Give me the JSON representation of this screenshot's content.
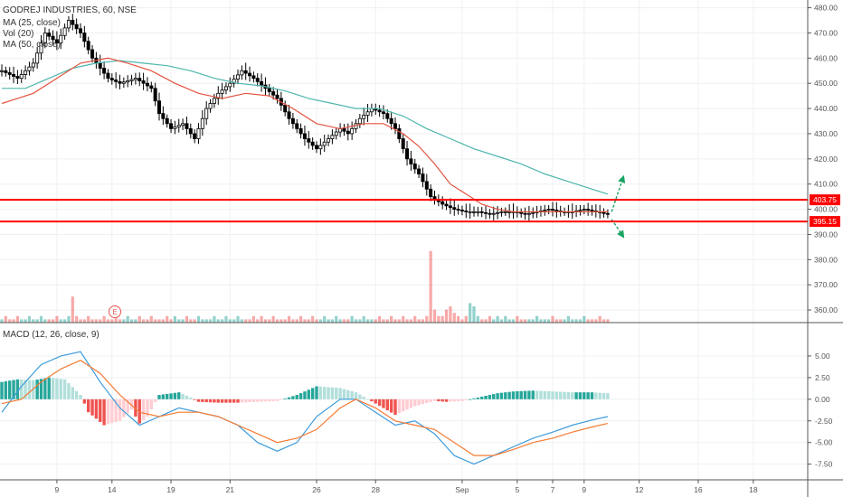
{
  "legend": {
    "title": "GODREJ INDUSTRIES, 60, NSE",
    "ma25": "MA (25, close)",
    "vol": "Vol (20)",
    "ma50": "MA (50, close)",
    "macd": "MACD (12, 26, close, 9)"
  },
  "earnings_marker": "E",
  "colors": {
    "up": "#26a69a",
    "down": "#ef5350",
    "ma25": "#e35340",
    "ma50": "#4db6ac",
    "level": "#ff0000",
    "macd_line": "#3d9bdc",
    "signal_line": "#f57b33",
    "arrow": "#19a463"
  },
  "chart_data": [
    {
      "type": "candlestick",
      "title": "GODREJ INDUSTRIES, 60, NSE",
      "x_ticks": [
        "9",
        "14",
        "19",
        "21",
        "26",
        "28",
        "Sep",
        "5",
        "7",
        "9",
        "12",
        "16",
        "18"
      ],
      "y_ticks": [
        "480.00",
        "470.00",
        "460.00",
        "450.00",
        "440.00",
        "430.00",
        "420.00",
        "410.00",
        "400.00",
        "390.00",
        "380.00",
        "370.00",
        "360.00"
      ],
      "ylim": [
        355,
        482
      ],
      "levels": [
        {
          "label": "403.75",
          "value": 403.75
        },
        {
          "label": "395.15",
          "value": 395.15
        }
      ],
      "close_path": [
        [
          0,
          455
        ],
        [
          4,
          452
        ],
        [
          8,
          458
        ],
        [
          11,
          470
        ],
        [
          14,
          466
        ],
        [
          17,
          475
        ],
        [
          20,
          470
        ],
        [
          23,
          460
        ],
        [
          27,
          452
        ],
        [
          30,
          450
        ],
        [
          34,
          452
        ],
        [
          38,
          448
        ],
        [
          40,
          438
        ],
        [
          43,
          432
        ],
        [
          46,
          434
        ],
        [
          49,
          428
        ],
        [
          52,
          440
        ],
        [
          55,
          446
        ],
        [
          58,
          450
        ],
        [
          61,
          455
        ],
        [
          64,
          452
        ],
        [
          67,
          448
        ],
        [
          70,
          444
        ],
        [
          73,
          436
        ],
        [
          77,
          428
        ],
        [
          80,
          424
        ],
        [
          83,
          428
        ],
        [
          86,
          432
        ],
        [
          88,
          430
        ],
        [
          91,
          436
        ],
        [
          94,
          440
        ],
        [
          97,
          438
        ],
        [
          100,
          432
        ],
        [
          103,
          420
        ],
        [
          106,
          414
        ],
        [
          109,
          405
        ],
        [
          112,
          402
        ],
        [
          115,
          400
        ],
        [
          118,
          399
        ],
        [
          121,
          399
        ],
        [
          124,
          398
        ],
        [
          127,
          399
        ],
        [
          130,
          399
        ],
        [
          133,
          398
        ],
        [
          136,
          399
        ],
        [
          139,
          400
        ],
        [
          142,
          399
        ],
        [
          145,
          399
        ],
        [
          148,
          400
        ],
        [
          151,
          399
        ],
        [
          154,
          398
        ]
      ],
      "ma25_path": [
        [
          0,
          442
        ],
        [
          4,
          444
        ],
        [
          8,
          446
        ],
        [
          14,
          452
        ],
        [
          20,
          458
        ],
        [
          27,
          460
        ],
        [
          32,
          458
        ],
        [
          38,
          455
        ],
        [
          44,
          450
        ],
        [
          50,
          446
        ],
        [
          56,
          444
        ],
        [
          62,
          446
        ],
        [
          68,
          445
        ],
        [
          74,
          440
        ],
        [
          80,
          434
        ],
        [
          86,
          432
        ],
        [
          92,
          434
        ],
        [
          97,
          434
        ],
        [
          102,
          430
        ],
        [
          106,
          425
        ],
        [
          110,
          418
        ],
        [
          114,
          410
        ],
        [
          118,
          406
        ],
        [
          122,
          402
        ],
        [
          126,
          400
        ],
        [
          130,
          399
        ],
        [
          138,
          399
        ],
        [
          146,
          399
        ],
        [
          154,
          399
        ]
      ],
      "ma50_path": [
        [
          0,
          448
        ],
        [
          6,
          448
        ],
        [
          12,
          452
        ],
        [
          18,
          456
        ],
        [
          24,
          458
        ],
        [
          30,
          459
        ],
        [
          36,
          458
        ],
        [
          42,
          457
        ],
        [
          48,
          455
        ],
        [
          54,
          452
        ],
        [
          60,
          450
        ],
        [
          66,
          449
        ],
        [
          72,
          447
        ],
        [
          78,
          444
        ],
        [
          84,
          442
        ],
        [
          90,
          440
        ],
        [
          96,
          440
        ],
        [
          102,
          437
        ],
        [
          108,
          432
        ],
        [
          114,
          428
        ],
        [
          120,
          424
        ],
        [
          126,
          421
        ],
        [
          132,
          418
        ],
        [
          138,
          414
        ],
        [
          144,
          411
        ],
        [
          150,
          408
        ],
        [
          154,
          406
        ]
      ],
      "projections": [
        {
          "from": 155,
          "to": 158,
          "from_value": 399,
          "to_value": 413,
          "direction": "up"
        },
        {
          "from": 155,
          "to": 158,
          "from_value": 396,
          "to_value": 389,
          "direction": "down"
        }
      ]
    },
    {
      "type": "bar",
      "title": "Vol (20)",
      "values": [
        1,
        2,
        1,
        1,
        2,
        1,
        1,
        2,
        1,
        1,
        2,
        1,
        1,
        1,
        2,
        1,
        1,
        2,
        8,
        2,
        1,
        1,
        2,
        1,
        1,
        1,
        2,
        1,
        1,
        2,
        1,
        1,
        2,
        1,
        1,
        2,
        1,
        1,
        2,
        1,
        1,
        1,
        2,
        1,
        2,
        1,
        1,
        2,
        1,
        1,
        2,
        1,
        1,
        1,
        2,
        1,
        1,
        2,
        1,
        1,
        2,
        1,
        1,
        1,
        2,
        1,
        2,
        1,
        1,
        2,
        1,
        1,
        1,
        2,
        1,
        1,
        2,
        1,
        1,
        2,
        1,
        1,
        2,
        1,
        1,
        2,
        1,
        1,
        1,
        2,
        1,
        1,
        2,
        1,
        1,
        1,
        2,
        1,
        1,
        2,
        1,
        1,
        2,
        1,
        1,
        2,
        1,
        1,
        2,
        22,
        4,
        2,
        2,
        4,
        5,
        3,
        2,
        1,
        2,
        6,
        5,
        2,
        1,
        1,
        2,
        1,
        2,
        1,
        2,
        1,
        1,
        2,
        1,
        1,
        1,
        1,
        2,
        1,
        1,
        1,
        2,
        1,
        1,
        1,
        2,
        1,
        1,
        1,
        2,
        1,
        1,
        1,
        2,
        1,
        1
      ],
      "ylim": [
        0,
        25
      ]
    },
    {
      "type": "bar",
      "title": "MACD (12, 26, close, 9)",
      "y_ticks": [
        "5.00",
        "2.50",
        "0.00",
        "-2.50",
        "-5.00",
        "-7.50"
      ],
      "ylim": [
        -9,
        7.5
      ],
      "histogram": [
        [
          0,
          2
        ],
        [
          4,
          2.3
        ],
        [
          8,
          2.2
        ],
        [
          12,
          2.5
        ],
        [
          16,
          2.3
        ],
        [
          20,
          0.5
        ],
        [
          22,
          -1.5
        ],
        [
          26,
          -3
        ],
        [
          30,
          -2.5
        ],
        [
          33,
          -1.2
        ],
        [
          35,
          -2.8
        ],
        [
          37,
          -2
        ],
        [
          40,
          0.5
        ],
        [
          45,
          0.8
        ],
        [
          48,
          0.2
        ],
        [
          50,
          -0.3
        ],
        [
          55,
          -0.4
        ],
        [
          60,
          -0.4
        ],
        [
          65,
          -0.3
        ],
        [
          70,
          -0.2
        ],
        [
          75,
          0.5
        ],
        [
          80,
          1.5
        ],
        [
          86,
          1.3
        ],
        [
          90,
          0.8
        ],
        [
          95,
          -0.5
        ],
        [
          100,
          -1.8
        ],
        [
          105,
          -0.8
        ],
        [
          110,
          -0.2
        ],
        [
          113,
          -0.3
        ],
        [
          117,
          -0.2
        ],
        [
          122,
          0.3
        ],
        [
          126,
          0.7
        ],
        [
          130,
          0.9
        ],
        [
          135,
          1
        ],
        [
          140,
          0.9
        ],
        [
          145,
          0.8
        ],
        [
          150,
          0.8
        ],
        [
          154,
          0.7
        ]
      ],
      "macd_path": [
        [
          0,
          -1.5
        ],
        [
          5,
          1.5
        ],
        [
          10,
          4
        ],
        [
          15,
          5
        ],
        [
          20,
          5.5
        ],
        [
          25,
          2
        ],
        [
          30,
          -1
        ],
        [
          35,
          -3
        ],
        [
          40,
          -2
        ],
        [
          45,
          -1
        ],
        [
          50,
          -1.5
        ],
        [
          55,
          -2
        ],
        [
          60,
          -3
        ],
        [
          65,
          -5
        ],
        [
          70,
          -6
        ],
        [
          75,
          -5
        ],
        [
          80,
          -2
        ],
        [
          86,
          0
        ],
        [
          90,
          0
        ],
        [
          95,
          -1.5
        ],
        [
          100,
          -3
        ],
        [
          105,
          -2.5
        ],
        [
          110,
          -4
        ],
        [
          115,
          -6.5
        ],
        [
          120,
          -7.5
        ],
        [
          125,
          -6.5
        ],
        [
          130,
          -5.5
        ],
        [
          135,
          -4.5
        ],
        [
          140,
          -3.8
        ],
        [
          145,
          -3
        ],
        [
          150,
          -2.4
        ],
        [
          154,
          -2
        ]
      ],
      "signal_path": [
        [
          0,
          -0.5
        ],
        [
          5,
          0
        ],
        [
          10,
          2
        ],
        [
          15,
          3.5
        ],
        [
          20,
          4.5
        ],
        [
          25,
          3
        ],
        [
          30,
          0.5
        ],
        [
          35,
          -1.5
        ],
        [
          40,
          -2
        ],
        [
          45,
          -1.5
        ],
        [
          50,
          -1.5
        ],
        [
          55,
          -2
        ],
        [
          60,
          -3
        ],
        [
          65,
          -4
        ],
        [
          70,
          -5
        ],
        [
          75,
          -4.5
        ],
        [
          80,
          -3.5
        ],
        [
          86,
          -1
        ],
        [
          90,
          0
        ],
        [
          95,
          -1
        ],
        [
          100,
          -2.5
        ],
        [
          105,
          -3
        ],
        [
          110,
          -3.5
        ],
        [
          115,
          -5
        ],
        [
          120,
          -6.5
        ],
        [
          125,
          -6.5
        ],
        [
          130,
          -5.8
        ],
        [
          135,
          -5
        ],
        [
          140,
          -4.5
        ],
        [
          145,
          -3.8
        ],
        [
          150,
          -3.2
        ],
        [
          154,
          -2.8
        ]
      ]
    }
  ]
}
